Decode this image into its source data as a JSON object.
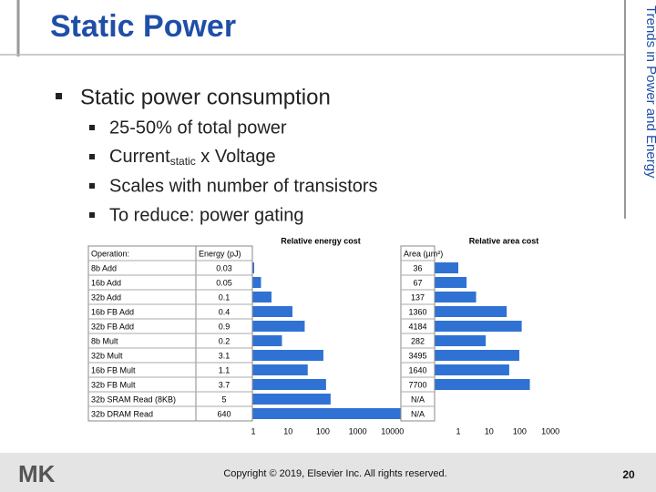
{
  "title": "Static Power",
  "side_title": "Trends in Power and Energy",
  "bullet": "Static power consumption",
  "sub_bullets": [
    "25-50% of total power",
    {
      "text": "Current",
      "subscript": "static",
      "rest": " x Voltage"
    },
    "Scales with number of transistors",
    "To reduce:  power gating"
  ],
  "table": {
    "headers": [
      "Operation:",
      "Energy (pJ)",
      "Area (µm²)"
    ],
    "energy_axis_title": "Relative energy cost",
    "area_axis_title": "Relative area cost",
    "energy_ticks": [
      1,
      10,
      100,
      1000,
      10000
    ],
    "area_ticks": [
      1,
      10,
      100,
      1000
    ],
    "rows": [
      {
        "operation": "8b Add",
        "energy": 0.03,
        "area": 36
      },
      {
        "operation": "16b Add",
        "energy": 0.05,
        "area": 67
      },
      {
        "operation": "32b Add",
        "energy": 0.1,
        "area": 137
      },
      {
        "operation": "16b FB Add",
        "energy": 0.4,
        "area": 1360
      },
      {
        "operation": "32b FB Add",
        "energy": 0.9,
        "area": 4184
      },
      {
        "operation": "8b Mult",
        "energy": 0.2,
        "area": 282
      },
      {
        "operation": "32b Mult",
        "energy": 3.1,
        "area": 3495
      },
      {
        "operation": "16b FB Mult",
        "energy": 1.1,
        "area": 1640
      },
      {
        "operation": "32b FB Mult",
        "energy": 3.7,
        "area": 7700
      },
      {
        "operation": "32b SRAM Read (8KB)",
        "energy": 5,
        "area": "N/A"
      },
      {
        "operation": "32b DRAM Read",
        "energy": 640,
        "area": "N/A"
      }
    ]
  },
  "footer": "Copyright © 2019, Elsevier Inc. All rights reserved.",
  "page": "20",
  "logo": "MK"
}
